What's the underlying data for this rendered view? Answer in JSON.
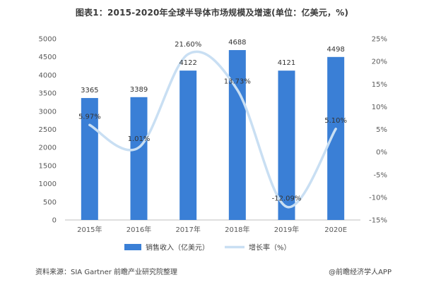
{
  "page": {
    "title": "图表1：2015-2020年全球半导体市场规模及增速(单位：亿美元，%)",
    "source": "资料来源：SIA Gartner 前瞻产业研究院整理",
    "brand": "@前瞻经济学人APP"
  },
  "colors": {
    "bar": "#3a7fd6",
    "line": "#c9dff3",
    "grid": "#e3e3e3"
  },
  "chart_data": {
    "type": "bar",
    "title": "图表1：2015-2020年全球半导体市场规模及增速(单位：亿美元，%)",
    "categories": [
      "2015年",
      "2016年",
      "2017年",
      "2018年",
      "2019年",
      "2020E"
    ],
    "series": [
      {
        "name": "销售收入（亿美元）",
        "type": "bar",
        "axis": "left",
        "values": [
          3365,
          3389,
          4122,
          4688,
          4121,
          4498
        ],
        "labels": [
          "3365",
          "3389",
          "4122",
          "4688",
          "4121",
          "4498"
        ]
      },
      {
        "name": "增长率（%）",
        "type": "line",
        "smooth": true,
        "axis": "right",
        "values": [
          5.97,
          1.01,
          21.6,
          13.73,
          -12.09,
          5.1
        ],
        "labels": [
          "5.97%",
          "1.01%",
          "21.60%",
          "13.73%",
          "-12.09%",
          "5.10%"
        ]
      }
    ],
    "y_left": {
      "lim": [
        0,
        5000
      ],
      "ticks": [
        "0",
        "500",
        "1000",
        "1500",
        "2000",
        "2500",
        "3000",
        "3500",
        "4000",
        "4500",
        "5000"
      ]
    },
    "y_right": {
      "lim": [
        -15,
        25
      ],
      "ticks": [
        "-15%",
        "-10%",
        "-5%",
        "0%",
        "5%",
        "10%",
        "15%",
        "20%",
        "25%"
      ]
    },
    "grid": false,
    "legend": "bottom"
  }
}
